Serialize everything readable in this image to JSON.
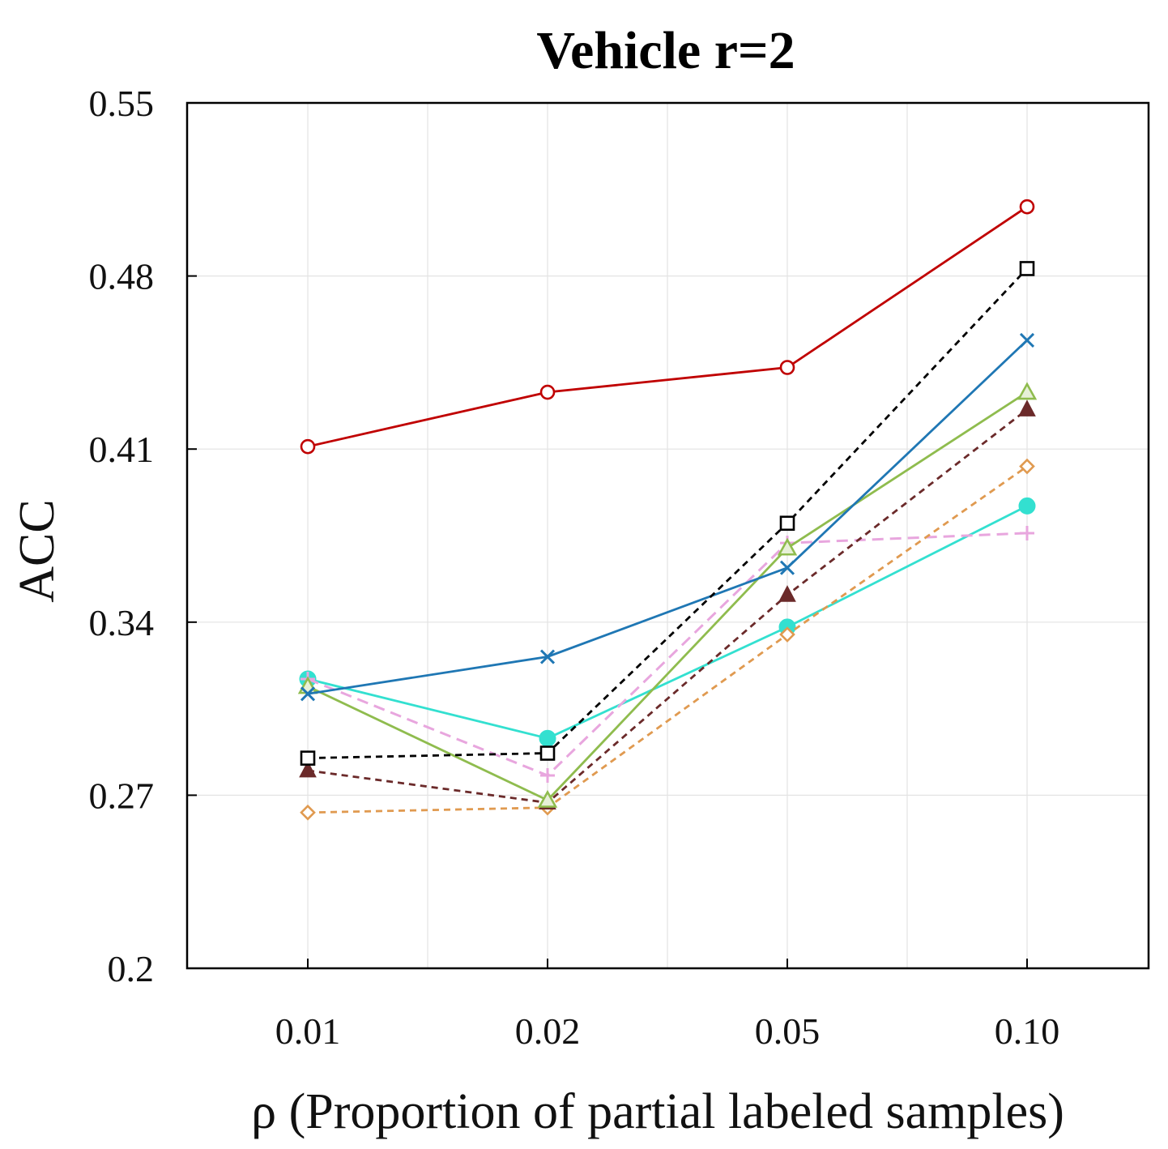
{
  "chart_data": {
    "type": "line",
    "title": "Vehicle r=2",
    "xlabel": "ρ (Proportion of partial labeled samples)",
    "ylabel": "ACC",
    "categories": [
      "0.01",
      "0.02",
      "0.05",
      "0.10"
    ],
    "yticks": [
      "0.2",
      "0.27",
      "0.34",
      "0.41",
      "0.48",
      "0.55"
    ],
    "ylim": [
      0.2,
      0.55
    ],
    "grid": true,
    "series": [
      {
        "values": [
          0.411,
          0.433,
          0.443,
          0.508
        ],
        "color": "#c00000",
        "dash": false,
        "marker": "circle-open"
      },
      {
        "values": [
          0.285,
          0.287,
          0.38,
          0.483
        ],
        "color": "#000000",
        "dash": true,
        "marker": "square-open"
      },
      {
        "values": [
          0.311,
          0.326,
          0.362,
          0.454
        ],
        "color": "#1f77b4",
        "dash": false,
        "marker": "x"
      },
      {
        "values": [
          0.314,
          0.268,
          0.37,
          0.433
        ],
        "color": "#8fbc4e",
        "dash": false,
        "marker": "triangle-open"
      },
      {
        "values": [
          0.28,
          0.267,
          0.351,
          0.426
        ],
        "color": "#6b2a2a",
        "dash": true,
        "marker": "triangle-filled"
      },
      {
        "values": [
          0.263,
          0.265,
          0.335,
          0.403
        ],
        "color": "#e09a50",
        "dash": true,
        "marker": "diamond-open"
      },
      {
        "values": [
          0.317,
          0.278,
          0.372,
          0.376
        ],
        "color": "#e8a6de",
        "dash": true,
        "marker": "plus"
      },
      {
        "values": [
          0.317,
          0.293,
          0.338,
          0.387
        ],
        "color": "#33e0d0",
        "dash": false,
        "marker": "circle-filled"
      }
    ]
  }
}
